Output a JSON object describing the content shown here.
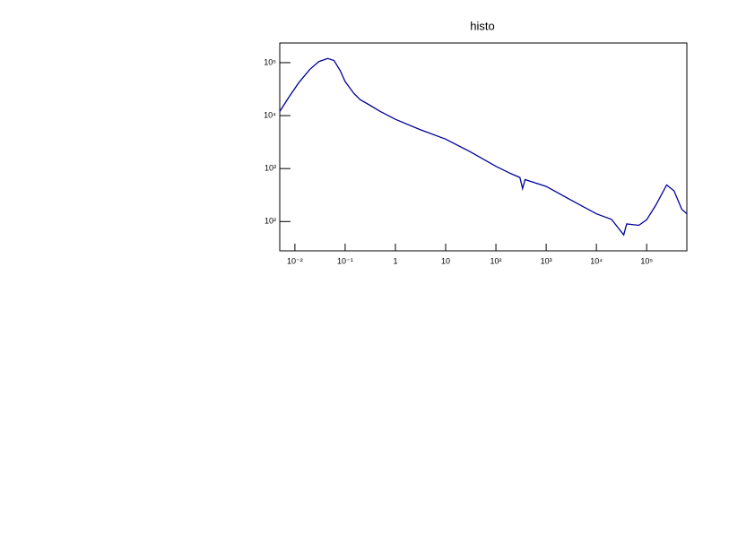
{
  "chart_data": {
    "type": "line",
    "title": "histo",
    "x": [
      0.005,
      0.008,
      0.012,
      0.02,
      0.03,
      0.045,
      0.06,
      0.08,
      0.1,
      0.15,
      0.2,
      0.3,
      0.5,
      1,
      3,
      10,
      30,
      100,
      200,
      300,
      340,
      380,
      1000,
      3000,
      10000,
      20000,
      35000,
      40000,
      70000,
      100000,
      150000,
      250000,
      350000,
      500000,
      630000
    ],
    "series": [
      {
        "color": "#000099",
        "values": [
          12000,
          24000,
          42000,
          75000,
          105000,
          120000,
          110000,
          70000,
          44000,
          26000,
          20000,
          16000,
          12000,
          8500,
          5500,
          3600,
          2100,
          1100,
          800,
          680,
          420,
          620,
          460,
          260,
          140,
          110,
          56,
          90,
          85,
          108,
          200,
          490,
          380,
          170,
          140
        ]
      }
    ],
    "xscale": "log",
    "yscale": "log",
    "xlim": [
      0.005,
      630000
    ],
    "ylim": [
      28,
      235000
    ],
    "xticks": [
      {
        "value": 0.01,
        "label": "10⁻²"
      },
      {
        "value": 0.1,
        "label": "10⁻¹"
      },
      1,
      10,
      {
        "value": 100,
        "label": "10²"
      },
      {
        "value": 1000,
        "label": "10³"
      },
      {
        "value": 10000,
        "label": "10⁴"
      },
      {
        "value": 100000,
        "label": "10⁵"
      }
    ],
    "yticks": [
      {
        "value": 100,
        "label": "10²"
      },
      {
        "value": 1000,
        "label": "10³"
      },
      {
        "value": 10000,
        "label": "10⁴"
      },
      {
        "value": 100000,
        "label": "10⁵"
      }
    ],
    "grid": false
  }
}
